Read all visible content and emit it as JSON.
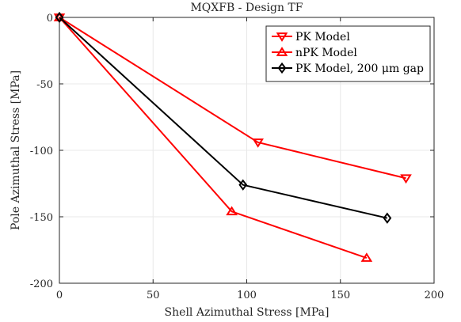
{
  "chart_data": {
    "type": "line",
    "title": "MQXFB - Design TF",
    "xlabel": "Shell Azimuthal Stress [MPa]",
    "ylabel": "Pole Azimuthal Stress [MPa]",
    "xlim": [
      0,
      200
    ],
    "ylim": [
      -200,
      0
    ],
    "xticks": [
      0,
      50,
      100,
      150,
      200
    ],
    "yticks": [
      0,
      -50,
      -100,
      -150,
      -200
    ],
    "grid": true,
    "legend_position": "top-right",
    "series": [
      {
        "name": "PK Model",
        "color": "#ff0000",
        "marker": "triangle-down",
        "x": [
          0,
          106,
          185
        ],
        "y": [
          0,
          -94,
          -121
        ]
      },
      {
        "name": "nPK Model",
        "color": "#ff0000",
        "marker": "triangle-up",
        "x": [
          0,
          92,
          164
        ],
        "y": [
          0,
          -146,
          -181
        ]
      },
      {
        "name": "PK Model, 200 μm gap",
        "color": "#000000",
        "marker": "diamond",
        "x": [
          0,
          98,
          175
        ],
        "y": [
          0,
          -126,
          -151
        ]
      }
    ]
  }
}
